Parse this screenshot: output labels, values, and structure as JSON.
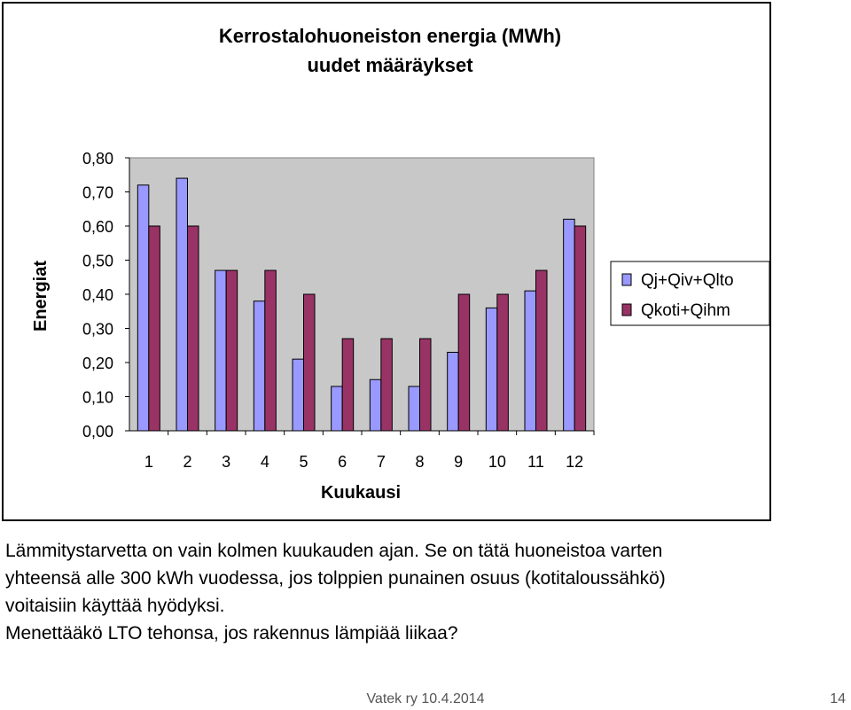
{
  "chart_data": {
    "type": "bar",
    "title": "Kerrostalohuoneiston energia (MWh)",
    "subtitle": "uudet määräykset",
    "xlabel": "Kuukausi",
    "ylabel": "Energiat",
    "categories": [
      "1",
      "2",
      "3",
      "4",
      "5",
      "6",
      "7",
      "8",
      "9",
      "10",
      "11",
      "12"
    ],
    "ylim": [
      0,
      0.8
    ],
    "yticks": [
      0,
      0.1,
      0.2,
      0.3,
      0.4,
      0.5,
      0.6,
      0.7,
      0.8
    ],
    "ytick_labels": [
      "0,00",
      "0,10",
      "0,20",
      "0,30",
      "0,40",
      "0,50",
      "0,60",
      "0,70",
      "0,80"
    ],
    "grid": false,
    "legend_position": "right",
    "plot_background": "#c8c8c8",
    "series": [
      {
        "name": "Qj+Qiv+Qlto",
        "color": "#9999ff",
        "values": [
          0.72,
          0.74,
          0.47,
          0.38,
          0.21,
          0.13,
          0.15,
          0.13,
          0.23,
          0.36,
          0.41,
          0.62
        ]
      },
      {
        "name": "Qkoti+Qihm",
        "color": "#993366",
        "values": [
          0.6,
          0.6,
          0.47,
          0.47,
          0.4,
          0.27,
          0.27,
          0.27,
          0.4,
          0.4,
          0.47,
          0.6
        ]
      }
    ]
  },
  "text": {
    "line1": "Lämmitystarvetta on vain kolmen kuukauden ajan. Se on tätä huoneistoa varten",
    "line2": "yhteensä alle 300 kWh vuodessa, jos tolppien punainen osuus (kotitaloussähkö)",
    "line3": "voitaisiin käyttää hyödyksi.",
    "line4": "Menettääkö LTO tehonsa, jos rakennus lämpiää liikaa?"
  },
  "footer": {
    "source": "Vatek ry 10.4.2014",
    "page": "14"
  }
}
